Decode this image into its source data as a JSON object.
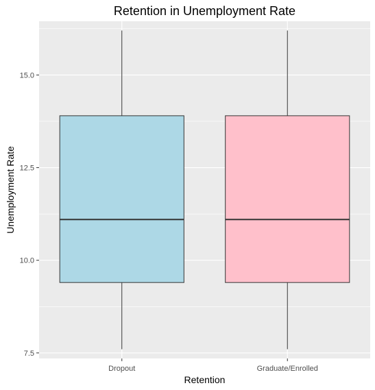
{
  "chart_data": {
    "type": "boxplot",
    "title": "Retention in Unemployment Rate",
    "xlabel": "Retention",
    "ylabel": "Unemployment Rate",
    "categories": [
      "Dropout",
      "Graduate/Enrolled"
    ],
    "boxes": [
      {
        "category": "Dropout",
        "min": 7.6,
        "q1": 9.4,
        "median": 11.1,
        "q3": 13.9,
        "max": 16.2,
        "fill": "#add8e6"
      },
      {
        "category": "Graduate/Enrolled",
        "min": 7.6,
        "q1": 9.4,
        "median": 11.1,
        "q3": 13.9,
        "max": 16.2,
        "fill": "#ffc0cb"
      }
    ],
    "y_ticks": [
      7.5,
      10.0,
      12.5,
      15.0
    ],
    "y_tick_labels": [
      "7.5",
      "10.0",
      "12.5",
      "15.0"
    ],
    "ylim": [
      7.35,
      16.45
    ],
    "grid": true,
    "legend": "none",
    "colors": {
      "panel_background": "#ebebeb",
      "grid": "#ffffff",
      "box_outline": "#333333"
    }
  }
}
